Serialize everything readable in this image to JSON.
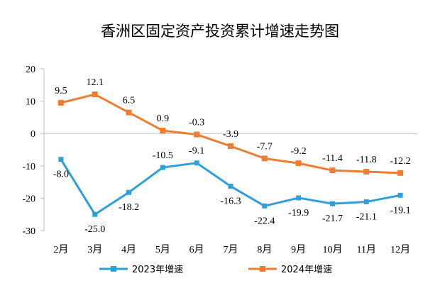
{
  "chart_data": {
    "type": "line",
    "title": "香洲区固定资产投资累计增速走势图",
    "categories": [
      "2月",
      "3月",
      "4月",
      "5月",
      "6月",
      "7月",
      "8月",
      "9月",
      "10月",
      "11月",
      "12月"
    ],
    "series": [
      {
        "name": "2023年增速",
        "color": "#2e9fd8",
        "values": [
          -8.0,
          -25.0,
          -18.2,
          -10.5,
          -9.1,
          -16.3,
          -22.4,
          -19.9,
          -21.7,
          -21.1,
          -19.1
        ],
        "labels": [
          "-8.0",
          "-25.0",
          "-18.2",
          "-10.5",
          "-9.1",
          "-16.3",
          "-22.4",
          "-19.9",
          "-21.7",
          "-21.1",
          "-19.1"
        ]
      },
      {
        "name": "2024年增速",
        "color": "#ed7d31",
        "values": [
          9.5,
          12.1,
          6.5,
          0.9,
          -0.3,
          -3.9,
          -7.7,
          -9.2,
          -11.4,
          -11.8,
          -12.2
        ],
        "labels": [
          "9.5",
          "12.1",
          "6.5",
          "0.9",
          "-0.3",
          "-3.9",
          "-7.7",
          "-9.2",
          "-11.4",
          "-11.8",
          "-12.2"
        ]
      }
    ],
    "ylim": [
      -30,
      20
    ],
    "yticks": [
      20,
      10,
      0,
      -10,
      -20,
      -30
    ],
    "grid": false,
    "legend_position": "bottom"
  }
}
